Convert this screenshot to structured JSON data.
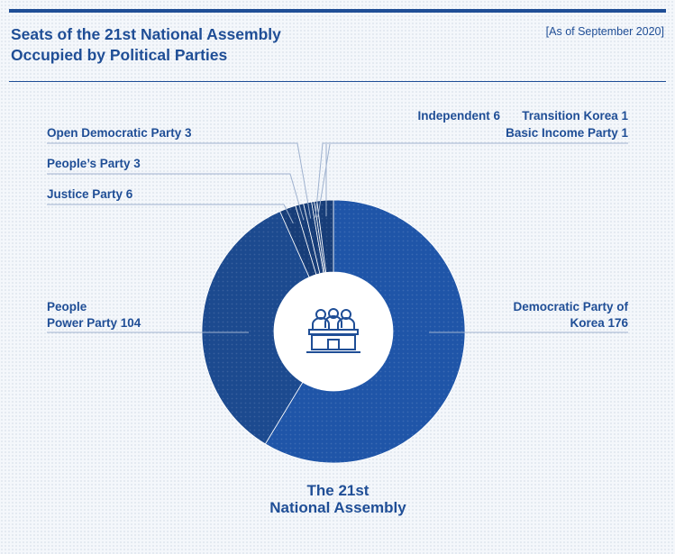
{
  "header": {
    "title_line1": "Seats of the 21st National Assembly",
    "title_line2": "Occupied by Political Parties",
    "date_note": "[As of September 2020]"
  },
  "colors": {
    "accent": "#1f4e96",
    "democratic": "#1f55a8",
    "people_power": "#1c4a8f",
    "small_parties": "#173d78",
    "hole": "#ffffff"
  },
  "center_icon": "national-assembly-icon",
  "chart_data": {
    "type": "pie",
    "variant": "donut",
    "title": "Seats of the 21st National Assembly Occupied by Political Parties",
    "center_label": [
      "The 21st",
      "National Assembly"
    ],
    "slices": [
      {
        "name": "Democratic Party of Korea",
        "label_lines": [
          "Democratic Party of",
          "Korea"
        ],
        "value_text": "176",
        "value": 176
      },
      {
        "name": "People Power Party",
        "label_lines": [
          "People",
          "Power Party"
        ],
        "value_text": "104",
        "value": 104
      },
      {
        "name": "Justice Party",
        "label_lines": [
          "Justice Party"
        ],
        "value_text": "6",
        "value": 6
      },
      {
        "name": "People's Party",
        "label_lines": [
          "People’s Party"
        ],
        "value_text": "3",
        "value": 3
      },
      {
        "name": "Open Democratic Party",
        "label_lines": [
          "Open Democratic Party"
        ],
        "value_text": "3",
        "value": 3
      },
      {
        "name": "Basic Income Party",
        "label_lines": [
          "Basic Income Party"
        ],
        "value_text": "1",
        "value": 1
      },
      {
        "name": "Transition Korea",
        "label_lines": [
          "Transition Korea"
        ],
        "value_text": "1",
        "value": 1
      },
      {
        "name": "Independent",
        "label_lines": [
          "Independent"
        ],
        "value_text": "6",
        "value": 6
      }
    ]
  }
}
